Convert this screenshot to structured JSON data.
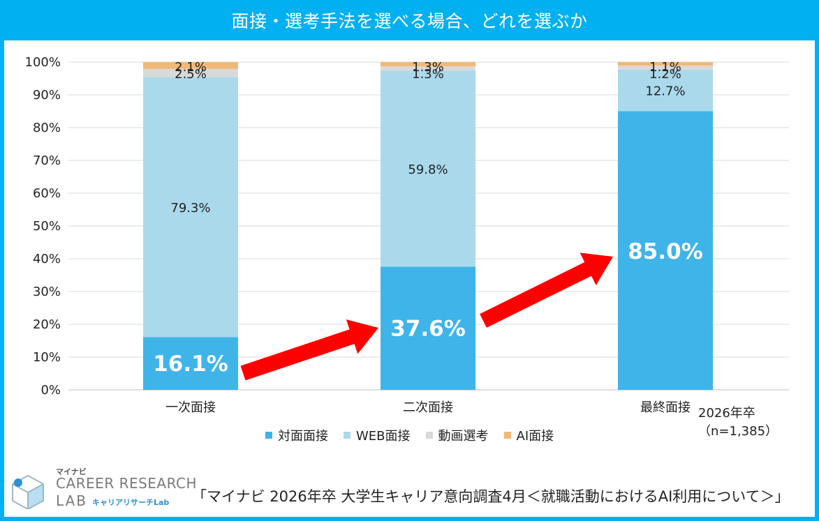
{
  "header": {
    "title": "面接・選考手法を選べる場合、どれを選ぶか"
  },
  "chart_data": {
    "type": "bar",
    "stacked": true,
    "categories": [
      "一次面接",
      "二次面接",
      "最終面接"
    ],
    "series": [
      {
        "name": "対面面接",
        "values": [
          16.1,
          37.6,
          85.0
        ],
        "color": "#3fb4e9"
      },
      {
        "name": "WEB面接",
        "values": [
          79.3,
          59.8,
          12.7
        ],
        "color": "#aad9ec"
      },
      {
        "name": "動画選考",
        "values": [
          2.5,
          1.3,
          1.2
        ],
        "color": "#d9d9d9"
      },
      {
        "name": "AI面接",
        "values": [
          2.1,
          1.3,
          1.1
        ],
        "color": "#f0b97a"
      }
    ],
    "data_labels": [
      [
        "16.1%",
        "79.3%",
        "2.5%",
        "2.1%"
      ],
      [
        "37.6%",
        "59.8%",
        "1.3%",
        "1.3%"
      ],
      [
        "85.0%",
        "12.7%",
        "1.2%",
        "1.1%"
      ]
    ],
    "yticks": [
      "0%",
      "10%",
      "20%",
      "30%",
      "40%",
      "50%",
      "60%",
      "70%",
      "80%",
      "90%",
      "100%"
    ],
    "ylim": [
      0,
      100
    ],
    "grid": true,
    "legend_position": "bottom",
    "annotation_color": "#ff0000"
  },
  "note": {
    "cohort": "2026年卒",
    "sample": "（n=1,385）"
  },
  "source": {
    "text": "「マイナビ  2026年卒  大学生キャリア意向調査4月＜就職活動におけるAI利用について＞」"
  },
  "logo": {
    "small": "マイナビ",
    "line1": "CAREER RESEARCH",
    "line2": "LAB",
    "sub": "キャリアリサーチLab"
  }
}
